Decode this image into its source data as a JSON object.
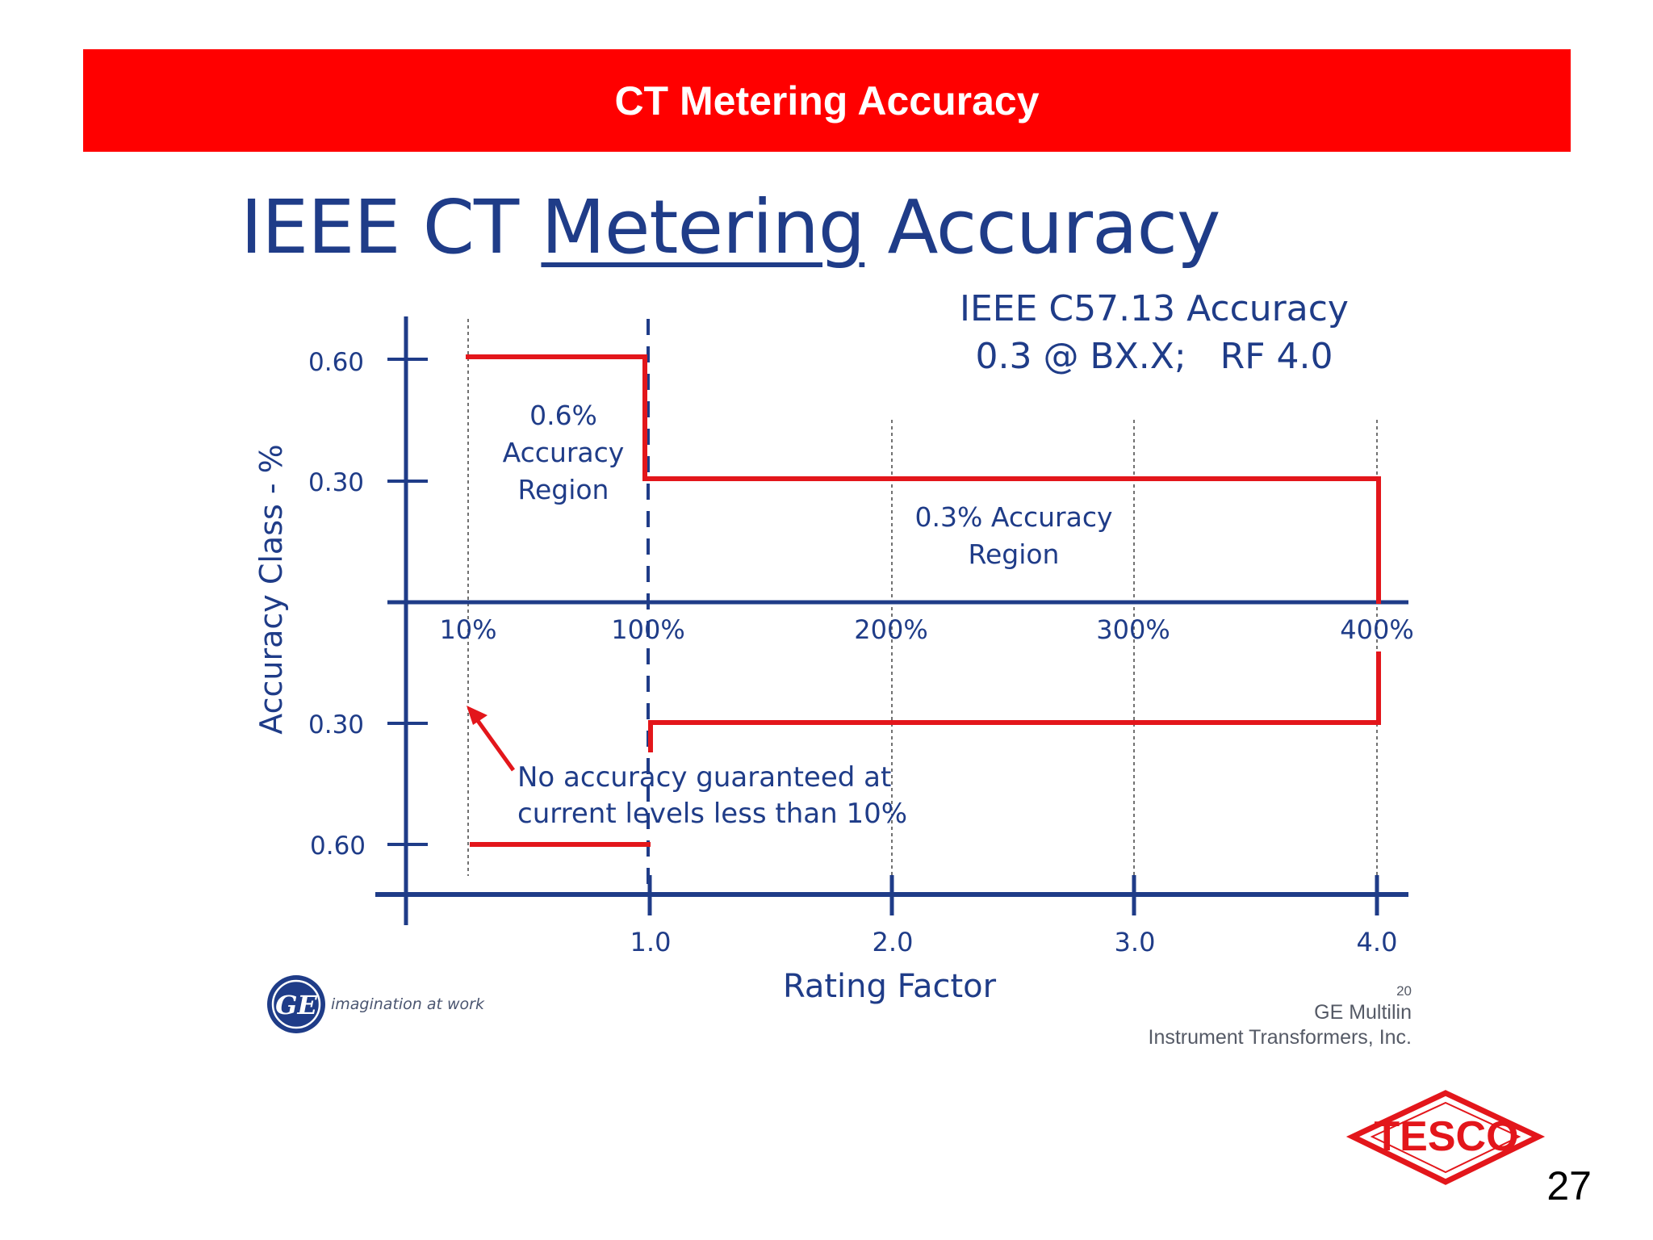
{
  "header": {
    "title": "CT Metering Accuracy",
    "background": "#ff0000"
  },
  "slide": {
    "title_prefix": "IEEE CT ",
    "title_underlined": "Metering",
    "title_suffix": " Accuracy",
    "title_color": "#1f3c88",
    "page_number": "27"
  },
  "standard": {
    "line1": "IEEE C57.13 Accuracy",
    "line2": "0.3 @ BX.X;   RF 4.0"
  },
  "axes": {
    "y_label": "Accuracy Class - %",
    "x_label": "Rating Factor",
    "y_ticks_upper": [
      "0.60",
      "0.30"
    ],
    "y_ticks_lower": [
      "0.30",
      "0.60"
    ],
    "current_ticks": [
      "10%",
      "100%",
      "200%",
      "300%",
      "400%"
    ],
    "rf_ticks": [
      "1.0",
      "2.0",
      "3.0",
      "4.0"
    ],
    "axis_color": "#1f3c88",
    "limit_color": "#e3161b"
  },
  "regions": {
    "region_06": [
      "0.6%",
      "Accuracy",
      "Region"
    ],
    "region_03": [
      "0.3% Accuracy",
      "Region"
    ]
  },
  "note": {
    "line1": "No accuracy guaranteed at",
    "line2": "current levels less than 10%"
  },
  "branding": {
    "ge_logo_text": "GE",
    "ge_tagline": "imagination at work",
    "credit_number": "20",
    "credit_line1": "GE Multilin",
    "credit_line2": "Instrument Transformers, Inc.",
    "tesco_logo_text": "TESCO"
  }
}
